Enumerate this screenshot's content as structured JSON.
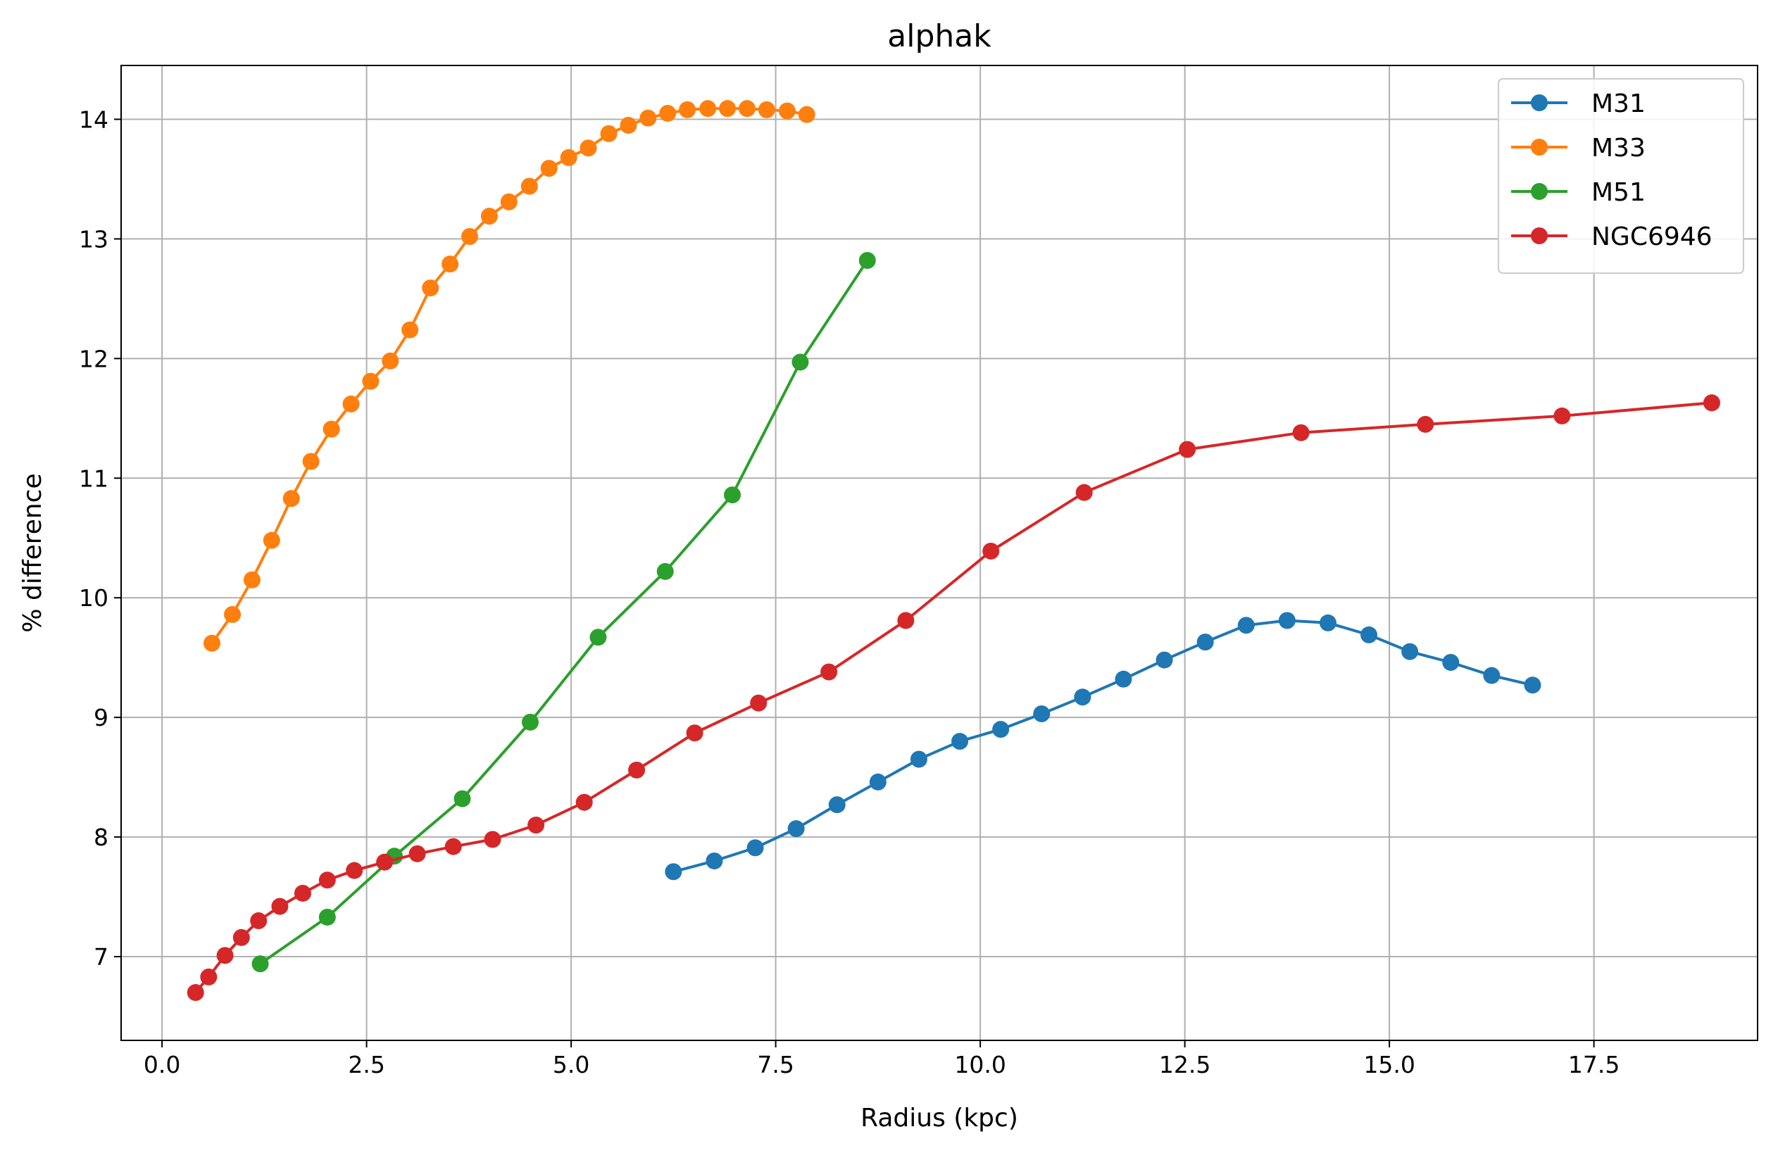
{
  "chart_data": {
    "type": "line",
    "title": "alphak",
    "xlabel": "Radius (kpc)",
    "ylabel": "% difference",
    "xlim": [
      -0.5,
      19.5
    ],
    "ylim": [
      6.3,
      14.45
    ],
    "xticks": [
      0.0,
      2.5,
      5.0,
      7.5,
      10.0,
      12.5,
      15.0,
      17.5
    ],
    "xtick_labels": [
      "0.0",
      "2.5",
      "5.0",
      "7.5",
      "10.0",
      "12.5",
      "15.0",
      "17.5"
    ],
    "yticks": [
      7,
      8,
      9,
      10,
      11,
      12,
      13,
      14
    ],
    "ytick_labels": [
      "7",
      "8",
      "9",
      "10",
      "11",
      "12",
      "13",
      "14"
    ],
    "grid": true,
    "legend_position": "top-right",
    "markers": "circle",
    "series": [
      {
        "name": "M31",
        "color": "#1f77b4",
        "x": [
          6.25,
          6.75,
          7.25,
          7.75,
          8.25,
          8.75,
          9.25,
          9.75,
          10.25,
          10.75,
          11.25,
          11.75,
          12.25,
          12.75,
          13.25,
          13.75,
          14.25,
          14.75,
          15.25,
          15.75,
          16.25,
          16.75
        ],
        "y": [
          7.71,
          7.8,
          7.91,
          8.07,
          8.27,
          8.46,
          8.65,
          8.8,
          8.9,
          9.03,
          9.17,
          9.32,
          9.48,
          9.63,
          9.77,
          9.81,
          9.79,
          9.69,
          9.55,
          9.46,
          9.35,
          9.27
        ]
      },
      {
        "name": "M33",
        "color": "#ff7f0e",
        "x": [
          0.61,
          0.86,
          1.1,
          1.34,
          1.58,
          1.82,
          2.07,
          2.31,
          2.55,
          2.79,
          3.03,
          3.28,
          3.52,
          3.76,
          4.0,
          4.24,
          4.49,
          4.73,
          4.97,
          5.21,
          5.46,
          5.7,
          5.94,
          6.18,
          6.42,
          6.67,
          6.91,
          7.15,
          7.39,
          7.64,
          7.88
        ],
        "y": [
          9.62,
          9.86,
          10.15,
          10.48,
          10.83,
          11.14,
          11.41,
          11.62,
          11.81,
          11.98,
          12.24,
          12.59,
          12.79,
          13.02,
          13.19,
          13.31,
          13.44,
          13.59,
          13.68,
          13.76,
          13.88,
          13.95,
          14.01,
          14.05,
          14.08,
          14.09,
          14.09,
          14.09,
          14.08,
          14.07,
          14.04
        ]
      },
      {
        "name": "M51",
        "color": "#2ca02c",
        "x": [
          1.2,
          2.02,
          2.84,
          3.67,
          4.5,
          5.33,
          6.15,
          6.97,
          7.8,
          8.62
        ],
        "y": [
          6.94,
          7.33,
          7.84,
          8.32,
          8.96,
          9.67,
          10.22,
          10.86,
          11.97,
          12.82
        ]
      },
      {
        "name": "NGC6946",
        "color": "#d62728",
        "x": [
          0.41,
          0.57,
          0.77,
          0.97,
          1.18,
          1.44,
          1.72,
          2.02,
          2.35,
          2.72,
          3.12,
          3.56,
          4.04,
          4.57,
          5.16,
          5.8,
          6.51,
          7.29,
          8.15,
          9.09,
          10.13,
          11.27,
          12.53,
          13.92,
          15.44,
          17.11,
          18.94
        ],
        "y": [
          6.7,
          6.83,
          7.01,
          7.16,
          7.3,
          7.42,
          7.53,
          7.64,
          7.72,
          7.79,
          7.86,
          7.92,
          7.98,
          8.1,
          8.29,
          8.56,
          8.87,
          9.12,
          9.38,
          9.81,
          10.39,
          10.88,
          11.24,
          11.38,
          11.45,
          11.52,
          11.63
        ]
      }
    ]
  }
}
